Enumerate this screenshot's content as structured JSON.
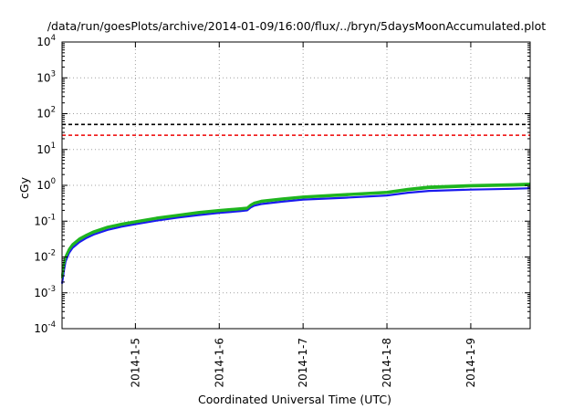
{
  "chart_data": {
    "type": "line",
    "title": "/data/run/goesPlots/archive/2014-01-09/16:00/flux/../bryn/5daysMoonAccumulated.plot",
    "xlabel": "Coordinated Universal Time (UTC)",
    "ylabel": "cGy",
    "yscale": "log",
    "ylim": [
      0.0001,
      10000
    ],
    "xlim": [
      "2014-01-04 03:00",
      "2014-01-09 17:00"
    ],
    "grid": true,
    "legend": "none",
    "yticks": [
      {
        "value": 0.0001,
        "base": "10",
        "exp": "-4"
      },
      {
        "value": 0.001,
        "base": "10",
        "exp": "-3"
      },
      {
        "value": 0.01,
        "base": "10",
        "exp": "-2"
      },
      {
        "value": 0.1,
        "base": "10",
        "exp": "-1"
      },
      {
        "value": 1,
        "base": "10",
        "exp": "0"
      },
      {
        "value": 10,
        "base": "10",
        "exp": "1"
      },
      {
        "value": 100,
        "base": "10",
        "exp": "2"
      },
      {
        "value": 1000,
        "base": "10",
        "exp": "3"
      },
      {
        "value": 10000,
        "base": "10",
        "exp": "4"
      }
    ],
    "xticks": [
      {
        "value": "2014-01-05 00:00",
        "label": "2014-1-5"
      },
      {
        "value": "2014-01-06 00:00",
        "label": "2014-1-6"
      },
      {
        "value": "2014-01-07 00:00",
        "label": "2014-1-7"
      },
      {
        "value": "2014-01-08 00:00",
        "label": "2014-1-8"
      },
      {
        "value": "2014-01-09 00:00",
        "label": "2014-1-9"
      }
    ],
    "hlines": [
      {
        "y": 50,
        "color": "#000000",
        "style": "dashed"
      },
      {
        "y": 25,
        "color": "#ee0000",
        "style": "dashed"
      }
    ],
    "series": [
      {
        "color": "#1fb51f",
        "x": [
          "2014-01-04 03:00",
          "2014-01-04 03:30",
          "2014-01-04 04:00",
          "2014-01-04 05:00",
          "2014-01-04 06:00",
          "2014-01-04 08:00",
          "2014-01-04 10:00",
          "2014-01-04 12:00",
          "2014-01-04 16:00",
          "2014-01-04 20:00",
          "2014-01-05 00:00",
          "2014-01-05 06:00",
          "2014-01-05 12:00",
          "2014-01-05 18:00",
          "2014-01-06 00:00",
          "2014-01-06 06:00",
          "2014-01-06 08:00",
          "2014-01-06 09:00",
          "2014-01-06 10:00",
          "2014-01-06 12:00",
          "2014-01-06 18:00",
          "2014-01-07 00:00",
          "2014-01-07 12:00",
          "2014-01-08 00:00",
          "2014-01-08 06:00",
          "2014-01-08 12:00",
          "2014-01-09 00:00",
          "2014-01-09 12:00",
          "2014-01-09 17:00"
        ],
        "values": [
          0.003,
          0.0065,
          0.0105,
          0.017,
          0.023,
          0.033,
          0.042,
          0.052,
          0.07,
          0.085,
          0.1,
          0.125,
          0.15,
          0.18,
          0.205,
          0.23,
          0.24,
          0.29,
          0.33,
          0.37,
          0.43,
          0.49,
          0.57,
          0.66,
          0.8,
          0.92,
          1.02,
          1.08,
          1.12
        ]
      },
      {
        "color": "#1a1aee",
        "x": [
          "2014-01-04 03:00",
          "2014-01-04 03:30",
          "2014-01-04 04:00",
          "2014-01-04 05:00",
          "2014-01-04 06:00",
          "2014-01-04 08:00",
          "2014-01-04 10:00",
          "2014-01-04 12:00",
          "2014-01-04 16:00",
          "2014-01-04 20:00",
          "2014-01-05 00:00",
          "2014-01-05 06:00",
          "2014-01-05 12:00",
          "2014-01-05 18:00",
          "2014-01-06 00:00",
          "2014-01-06 06:00",
          "2014-01-06 08:00",
          "2014-01-06 09:00",
          "2014-01-06 10:00",
          "2014-01-06 12:00",
          "2014-01-06 18:00",
          "2014-01-07 00:00",
          "2014-01-07 12:00",
          "2014-01-08 00:00",
          "2014-01-08 06:00",
          "2014-01-08 12:00",
          "2014-01-09 00:00",
          "2014-01-09 12:00",
          "2014-01-09 17:00"
        ],
        "values": [
          0.0018,
          0.004,
          0.0075,
          0.013,
          0.018,
          0.026,
          0.034,
          0.042,
          0.057,
          0.07,
          0.082,
          0.103,
          0.125,
          0.148,
          0.17,
          0.19,
          0.2,
          0.24,
          0.27,
          0.3,
          0.35,
          0.4,
          0.45,
          0.52,
          0.62,
          0.7,
          0.76,
          0.8,
          0.83
        ]
      },
      {
        "color": "#1fb51f",
        "x": [
          "2014-01-04 03:00",
          "2014-01-04 03:30",
          "2014-01-04 04:00",
          "2014-01-04 05:00",
          "2014-01-04 06:00",
          "2014-01-04 08:00",
          "2014-01-04 10:00",
          "2014-01-04 12:00",
          "2014-01-04 16:00",
          "2014-01-04 20:00",
          "2014-01-05 00:00",
          "2014-01-05 06:00",
          "2014-01-05 12:00",
          "2014-01-05 18:00",
          "2014-01-06 00:00",
          "2014-01-06 06:00",
          "2014-01-06 08:00",
          "2014-01-06 09:00",
          "2014-01-06 10:00",
          "2014-01-06 12:00",
          "2014-01-06 18:00",
          "2014-01-07 00:00",
          "2014-01-07 12:00",
          "2014-01-08 00:00",
          "2014-01-08 06:00",
          "2014-01-08 12:00",
          "2014-01-09 00:00",
          "2014-01-09 12:00",
          "2014-01-09 17:00"
        ],
        "values": [
          0.0026,
          0.0057,
          0.0095,
          0.0155,
          0.021,
          0.03,
          0.039,
          0.048,
          0.065,
          0.079,
          0.093,
          0.116,
          0.14,
          0.167,
          0.19,
          0.213,
          0.223,
          0.27,
          0.307,
          0.343,
          0.4,
          0.455,
          0.525,
          0.61,
          0.73,
          0.84,
          0.93,
          0.98,
          1.01
        ]
      }
    ]
  }
}
